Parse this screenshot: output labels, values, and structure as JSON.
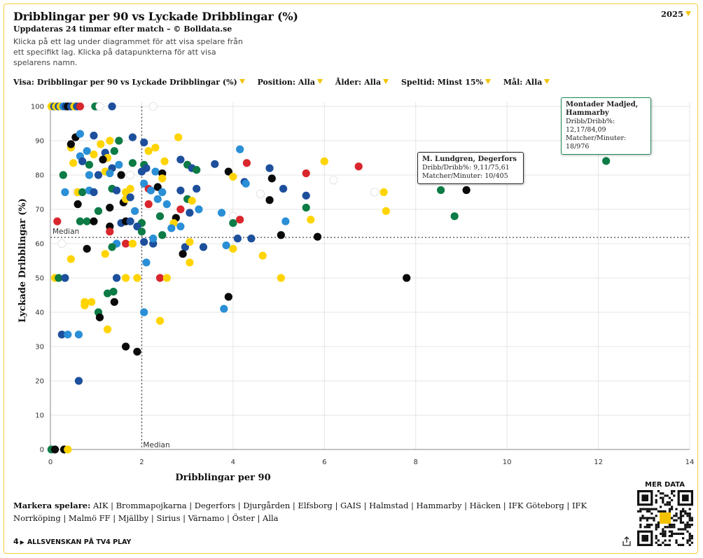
{
  "header": {
    "title": "Dribblingar per 90 vs Lyckade Dribblingar (%)",
    "subtitle": "Uppdateras 24 timmar efter match – © Bolldata.se",
    "instructions": "Klicka på ett lag under diagrammet för att visa spelare från ett specifikt lag. Klicka på datapunkterna för att visa spelarens namn.",
    "year": "2025"
  },
  "filters": [
    {
      "label": "Visa:",
      "value": "Dribblingar per 90 vs Lyckade Dribblingar (%)"
    },
    {
      "label": "Position:",
      "value": "Alla"
    },
    {
      "label": "Ålder:",
      "value": "Alla"
    },
    {
      "label": "Speltid:",
      "value": "Minst 15%"
    },
    {
      "label": "Mål:",
      "value": "Alla"
    }
  ],
  "colors": {
    "accent": "#f2c200",
    "yellow": "#ffd400",
    "navy": "#1d4f9c",
    "blue": "#2a8fd6",
    "green": "#0c7b45",
    "black": "#0a0a0a",
    "red": "#d9262c",
    "white": "#ffffff"
  },
  "chart_data": {
    "type": "scatter",
    "xlabel": "Dribblingar per 90",
    "ylabel": "Lyckade Dribblingar (%)",
    "xlim": [
      0,
      14
    ],
    "ylim": [
      0,
      100
    ],
    "xticks": [
      0,
      2,
      4,
      6,
      8,
      10,
      12,
      14
    ],
    "yticks": [
      0,
      10,
      20,
      30,
      40,
      50,
      60,
      70,
      80,
      90,
      100
    ],
    "grid": true,
    "median_x": 2.0,
    "median_y": 61.8,
    "median_label": "Median",
    "points": [
      [
        0.02,
        100,
        "yellow"
      ],
      [
        0.08,
        100,
        "navy"
      ],
      [
        0.12,
        100,
        "yellow"
      ],
      [
        0.18,
        100,
        "navy"
      ],
      [
        0.22,
        100,
        "yellow"
      ],
      [
        0.28,
        100,
        "blue"
      ],
      [
        0.33,
        100,
        "navy"
      ],
      [
        0.38,
        100,
        "black"
      ],
      [
        0.45,
        100,
        "navy"
      ],
      [
        0.52,
        100,
        "yellow"
      ],
      [
        0.58,
        100,
        "navy"
      ],
      [
        0.65,
        100,
        "red"
      ],
      [
        0.98,
        100,
        "green"
      ],
      [
        1.05,
        100,
        "green"
      ],
      [
        1.08,
        100,
        "white"
      ],
      [
        1.35,
        100,
        "navy"
      ],
      [
        2.25,
        100,
        "white"
      ],
      [
        0.55,
        91,
        "black"
      ],
      [
        0.65,
        92,
        "blue"
      ],
      [
        0.95,
        91.5,
        "navy"
      ],
      [
        0.45,
        88,
        "yellow"
      ],
      [
        0.45,
        89,
        "black"
      ],
      [
        0.8,
        87,
        "blue"
      ],
      [
        1.1,
        89,
        "yellow"
      ],
      [
        1.5,
        90,
        "green"
      ],
      [
        1.3,
        90,
        "yellow"
      ],
      [
        1.8,
        91,
        "navy"
      ],
      [
        2.8,
        91,
        "yellow"
      ],
      [
        2.05,
        89.5,
        "navy"
      ],
      [
        2.15,
        87,
        "yellow"
      ],
      [
        2.3,
        88,
        "yellow"
      ],
      [
        0.65,
        85.5,
        "blue"
      ],
      [
        0.95,
        86,
        "yellow"
      ],
      [
        1.2,
        86.5,
        "navy"
      ],
      [
        1.4,
        87,
        "green"
      ],
      [
        1.25,
        85,
        "yellow"
      ],
      [
        0.5,
        83.5,
        "yellow"
      ],
      [
        0.7,
        84,
        "navy"
      ],
      [
        0.85,
        83,
        "green"
      ],
      [
        1.15,
        84.5,
        "black"
      ],
      [
        1.35,
        82,
        "navy"
      ],
      [
        1.5,
        83,
        "blue"
      ],
      [
        1.8,
        83.5,
        "green"
      ],
      [
        2.05,
        83,
        "green"
      ],
      [
        2.1,
        82,
        "navy"
      ],
      [
        2.5,
        84,
        "yellow"
      ],
      [
        2.85,
        84.5,
        "navy"
      ],
      [
        3.0,
        83,
        "green"
      ],
      [
        3.1,
        82,
        "navy"
      ],
      [
        3.2,
        81.5,
        "green"
      ],
      [
        3.6,
        83.2,
        "navy"
      ],
      [
        4.15,
        87.5,
        "blue"
      ],
      [
        4.3,
        83.5,
        "red"
      ],
      [
        4.8,
        82,
        "navy"
      ],
      [
        0.28,
        80,
        "green"
      ],
      [
        0.85,
        80,
        "blue"
      ],
      [
        1.05,
        80,
        "navy"
      ],
      [
        1.2,
        81,
        "yellow"
      ],
      [
        1.3,
        80.5,
        "blue"
      ],
      [
        1.55,
        80,
        "black"
      ],
      [
        1.75,
        80,
        "white"
      ],
      [
        2.3,
        81,
        "blue"
      ],
      [
        2.45,
        80.5,
        "black"
      ],
      [
        2.45,
        79,
        "yellow"
      ],
      [
        2.0,
        81,
        "navy"
      ],
      [
        3.9,
        81,
        "black"
      ],
      [
        4.0,
        79.5,
        "yellow"
      ],
      [
        4.85,
        79,
        "black"
      ],
      [
        5.6,
        80.5,
        "red"
      ],
      [
        6.0,
        84,
        "yellow"
      ],
      [
        6.75,
        82.5,
        "red"
      ],
      [
        6.2,
        78.5,
        "white"
      ],
      [
        4.25,
        78,
        "navy"
      ],
      [
        4.28,
        77.5,
        "blue"
      ],
      [
        0.32,
        75,
        "blue"
      ],
      [
        0.58,
        75,
        "white"
      ],
      [
        0.6,
        75,
        "yellow"
      ],
      [
        0.7,
        75,
        "green"
      ],
      [
        0.85,
        75.5,
        "blue"
      ],
      [
        0.95,
        75,
        "navy"
      ],
      [
        1.35,
        76,
        "green"
      ],
      [
        1.45,
        75.5,
        "navy"
      ],
      [
        1.65,
        75,
        "yellow"
      ],
      [
        1.75,
        76,
        "yellow"
      ],
      [
        2.05,
        77.5,
        "blue"
      ],
      [
        2.15,
        76,
        "red"
      ],
      [
        2.2,
        75.5,
        "blue"
      ],
      [
        2.35,
        76.5,
        "black"
      ],
      [
        2.45,
        75,
        "blue"
      ],
      [
        2.85,
        75.5,
        "navy"
      ],
      [
        3.2,
        76,
        "navy"
      ],
      [
        4.6,
        74.5,
        "white"
      ],
      [
        5.1,
        76,
        "navy"
      ],
      [
        5.6,
        74,
        "navy"
      ],
      [
        7.1,
        75,
        "white"
      ],
      [
        7.3,
        75,
        "yellow"
      ],
      [
        8.55,
        75.6,
        "green"
      ],
      [
        9.11,
        75.61,
        "black"
      ],
      [
        0.6,
        71.5,
        "black"
      ],
      [
        1.05,
        69.5,
        "green"
      ],
      [
        1.3,
        70.5,
        "black"
      ],
      [
        1.6,
        72,
        "black"
      ],
      [
        1.65,
        73,
        "yellow"
      ],
      [
        1.75,
        73.5,
        "navy"
      ],
      [
        1.85,
        69.5,
        "blue"
      ],
      [
        2.15,
        71.5,
        "red"
      ],
      [
        2.35,
        73,
        "blue"
      ],
      [
        2.55,
        71.5,
        "blue"
      ],
      [
        2.85,
        70,
        "red"
      ],
      [
        3.0,
        73,
        "green"
      ],
      [
        3.1,
        72.5,
        "yellow"
      ],
      [
        3.05,
        69,
        "navy"
      ],
      [
        3.25,
        70,
        "blue"
      ],
      [
        3.75,
        69,
        "blue"
      ],
      [
        4.0,
        68,
        "white"
      ],
      [
        4.8,
        72.7,
        "black"
      ],
      [
        5.6,
        70.5,
        "green"
      ],
      [
        5.7,
        67,
        "yellow"
      ],
      [
        7.35,
        69.5,
        "yellow"
      ],
      [
        8.85,
        68,
        "green"
      ],
      [
        0.15,
        66.5,
        "red"
      ],
      [
        0.65,
        66.5,
        "green"
      ],
      [
        0.8,
        66.5,
        "green"
      ],
      [
        0.95,
        66.5,
        "black"
      ],
      [
        1.55,
        66,
        "navy"
      ],
      [
        1.65,
        66.5,
        "black"
      ],
      [
        1.75,
        66.5,
        "navy"
      ],
      [
        2.0,
        66,
        "green"
      ],
      [
        2.4,
        68,
        "green"
      ],
      [
        2.75,
        67.5,
        "black"
      ],
      [
        2.7,
        66,
        "yellow"
      ],
      [
        2.65,
        64.5,
        "blue"
      ],
      [
        2.85,
        65,
        "blue"
      ],
      [
        1.3,
        65,
        "black"
      ],
      [
        1.3,
        63.5,
        "red"
      ],
      [
        1.9,
        65,
        "navy"
      ],
      [
        2.0,
        63.5,
        "green"
      ],
      [
        2.45,
        62.5,
        "green"
      ],
      [
        4.0,
        66,
        "green"
      ],
      [
        4.15,
        67,
        "red"
      ],
      [
        5.15,
        66.5,
        "blue"
      ],
      [
        5.05,
        62.5,
        "black"
      ],
      [
        5.85,
        62,
        "black"
      ],
      [
        0.25,
        60,
        "white"
      ],
      [
        1.45,
        60,
        "blue"
      ],
      [
        1.65,
        60,
        "red"
      ],
      [
        1.8,
        60,
        "yellow"
      ],
      [
        2.05,
        60.5,
        "navy"
      ],
      [
        2.25,
        60,
        "navy"
      ],
      [
        2.25,
        61.5,
        "blue"
      ],
      [
        2.95,
        59,
        "navy"
      ],
      [
        3.05,
        60.5,
        "yellow"
      ],
      [
        3.35,
        59,
        "navy"
      ],
      [
        3.85,
        59.5,
        "blue"
      ],
      [
        4.0,
        58.5,
        "yellow"
      ],
      [
        4.1,
        61.5,
        "navy"
      ],
      [
        4.4,
        61.5,
        "navy"
      ],
      [
        0.8,
        58.5,
        "black"
      ],
      [
        1.35,
        59,
        "green"
      ],
      [
        1.2,
        57,
        "yellow"
      ],
      [
        2.9,
        57,
        "black"
      ],
      [
        0.45,
        55.5,
        "yellow"
      ],
      [
        2.1,
        54.5,
        "blue"
      ],
      [
        3.05,
        54.5,
        "yellow"
      ],
      [
        4.65,
        56.5,
        "yellow"
      ],
      [
        0.1,
        50,
        "yellow"
      ],
      [
        0.18,
        50,
        "green"
      ],
      [
        0.32,
        50,
        "navy"
      ],
      [
        1.45,
        50,
        "navy"
      ],
      [
        1.65,
        50,
        "yellow"
      ],
      [
        1.9,
        50,
        "yellow"
      ],
      [
        2.4,
        50,
        "red"
      ],
      [
        2.55,
        50,
        "yellow"
      ],
      [
        5.05,
        50,
        "yellow"
      ],
      [
        7.8,
        50,
        "black"
      ],
      [
        1.25,
        45.5,
        "green"
      ],
      [
        1.38,
        46,
        "green"
      ],
      [
        3.9,
        44.5,
        "black"
      ],
      [
        0.75,
        43,
        "yellow"
      ],
      [
        0.9,
        43,
        "yellow"
      ],
      [
        0.75,
        42,
        "yellow"
      ],
      [
        1.4,
        43,
        "black"
      ],
      [
        1.05,
        40,
        "green"
      ],
      [
        1.08,
        38.5,
        "black"
      ],
      [
        2.05,
        40,
        "blue"
      ],
      [
        3.8,
        41,
        "blue"
      ],
      [
        2.4,
        37.5,
        "yellow"
      ],
      [
        1.25,
        35,
        "yellow"
      ],
      [
        0.25,
        33.5,
        "navy"
      ],
      [
        0.38,
        33.5,
        "blue"
      ],
      [
        0.62,
        33.5,
        "blue"
      ],
      [
        1.65,
        30,
        "black"
      ],
      [
        1.9,
        28.5,
        "black"
      ],
      [
        0.62,
        20,
        "navy"
      ],
      [
        0.02,
        0,
        "green"
      ],
      [
        0.1,
        0,
        "black"
      ],
      [
        0.3,
        0,
        "black"
      ],
      [
        0.38,
        0,
        "yellow"
      ],
      [
        12.17,
        84.09,
        "green"
      ]
    ],
    "tooltips": [
      {
        "name": "M. Lundgren, Degerfors",
        "line1": "Dribb/Dribb%: 9,11/75,61",
        "line2": "Matcher/Minuter: 10/405"
      },
      {
        "name": "Montader Madjed, Hammarby",
        "line1": "Dribb/Dribb%: 12,17/84,09",
        "line2": "Matcher/Minuter: 18/976"
      }
    ]
  },
  "markera": {
    "label": "Markera spelare:",
    "teams": [
      "AIK",
      "Brommapojkarna",
      "Degerfors",
      "Djurgården",
      "Elfsborg",
      "GAIS",
      "Halmstad",
      "Hammarby",
      "Häcken",
      "IFK Göteborg",
      "IFK Norrköping",
      "Malmö FF",
      "Mjällby",
      "Sirius",
      "Värnamo",
      "Öster",
      "Alla"
    ]
  },
  "mer_data": "MER DATA",
  "footer": {
    "logo": "4",
    "text": "ALLSVENSKAN PÅ TV4 PLAY"
  }
}
